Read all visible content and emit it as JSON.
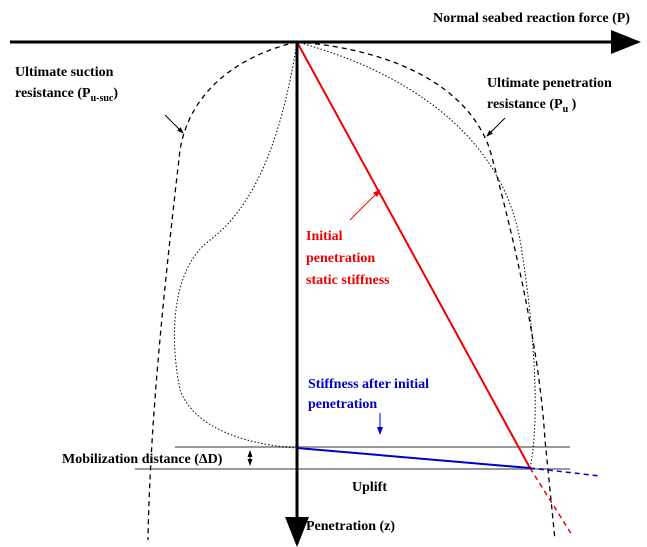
{
  "axes": {
    "horizontal": "Normal seabed reaction force (P)",
    "vertical": "Penetration (z)"
  },
  "labels": {
    "suction": {
      "line1": "Ultimate suction",
      "line2": "resistance (P",
      "sub": "u-suc",
      "end": ")"
    },
    "penetration": {
      "line1": "Ultimate penetration",
      "line2": "resistance (P",
      "sub": "u",
      "end": " )"
    },
    "initial_stiffness": {
      "lines": [
        "Initial",
        "penetration",
        "static stiffness"
      ]
    },
    "after_stiffness": {
      "lines": [
        "Stiffness after initial",
        "penetration"
      ]
    },
    "mobilization": "Mobilization distance (ΔD)",
    "uplift": "Uplift"
  }
}
